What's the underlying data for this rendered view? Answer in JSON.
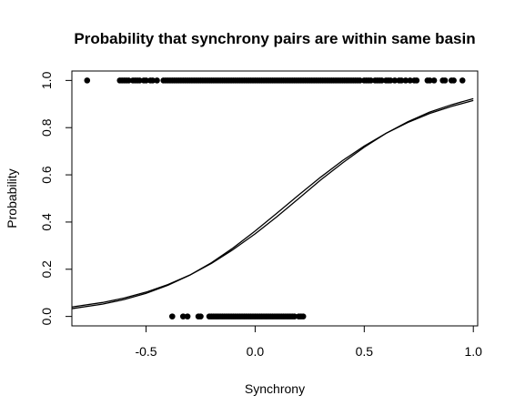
{
  "chart_data": {
    "type": "scatter",
    "title": "Probability that synchrony pairs are within same basin",
    "xlabel": "Synchrony",
    "ylabel": "Probability",
    "xlim": [
      -0.84,
      1.02
    ],
    "ylim": [
      -0.04,
      1.04
    ],
    "x_ticks": [
      "-0.5",
      "0.0",
      "0.5",
      "1.0"
    ],
    "y_ticks": [
      "0.0",
      "0.2",
      "0.4",
      "0.6",
      "0.8",
      "1.0"
    ],
    "grid": false,
    "legend": "none",
    "point_color": "#000000",
    "series": [
      {
        "type": "scatter",
        "y": 1,
        "x": [
          -0.77,
          -0.62,
          -0.61,
          -0.6,
          -0.59,
          -0.58,
          -0.56,
          -0.55,
          -0.54,
          -0.53,
          -0.51,
          -0.5,
          -0.48,
          -0.47,
          -0.45,
          -0.42,
          -0.41,
          -0.4,
          -0.39,
          -0.38,
          -0.37,
          -0.36,
          -0.35,
          -0.34,
          -0.33,
          -0.32,
          -0.31,
          -0.3,
          -0.29,
          -0.28,
          -0.27,
          -0.26,
          -0.25,
          -0.24,
          -0.23,
          -0.22,
          -0.21,
          -0.2,
          -0.19,
          -0.18,
          -0.17,
          -0.16,
          -0.15,
          -0.14,
          -0.13,
          -0.12,
          -0.11,
          -0.1,
          -0.09,
          -0.08,
          -0.07,
          -0.06,
          -0.05,
          -0.04,
          -0.03,
          -0.02,
          -0.01,
          0.0,
          0.01,
          0.02,
          0.03,
          0.04,
          0.05,
          0.06,
          0.07,
          0.08,
          0.09,
          0.1,
          0.11,
          0.12,
          0.13,
          0.14,
          0.15,
          0.16,
          0.17,
          0.18,
          0.19,
          0.2,
          0.21,
          0.22,
          0.23,
          0.24,
          0.25,
          0.26,
          0.27,
          0.28,
          0.29,
          0.3,
          0.31,
          0.32,
          0.33,
          0.34,
          0.35,
          0.36,
          0.37,
          0.38,
          0.39,
          0.4,
          0.41,
          0.42,
          0.43,
          0.44,
          0.45,
          0.46,
          0.47,
          0.48,
          0.5,
          0.51,
          0.52,
          0.53,
          0.55,
          0.56,
          0.57,
          0.58,
          0.6,
          0.61,
          0.62,
          0.64,
          0.66,
          0.67,
          0.69,
          0.71,
          0.73,
          0.74,
          0.79,
          0.8,
          0.82,
          0.86,
          0.87,
          0.9,
          0.91,
          0.95
        ]
      },
      {
        "type": "scatter",
        "y": 0,
        "x": [
          -0.38,
          -0.33,
          -0.31,
          -0.26,
          -0.25,
          -0.21,
          -0.2,
          -0.19,
          -0.18,
          -0.17,
          -0.16,
          -0.15,
          -0.14,
          -0.13,
          -0.12,
          -0.11,
          -0.1,
          -0.09,
          -0.08,
          -0.07,
          -0.06,
          -0.05,
          -0.04,
          -0.03,
          -0.02,
          -0.01,
          0.0,
          0.01,
          0.02,
          0.03,
          0.04,
          0.05,
          0.06,
          0.07,
          0.08,
          0.09,
          0.1,
          0.11,
          0.12,
          0.13,
          0.14,
          0.15,
          0.16,
          0.17,
          0.18,
          0.2,
          0.21,
          0.22
        ]
      },
      {
        "type": "line",
        "curve": "logistic",
        "x": [
          -0.84,
          -0.7,
          -0.6,
          -0.5,
          -0.4,
          -0.3,
          -0.2,
          -0.1,
          0.0,
          0.1,
          0.2,
          0.3,
          0.4,
          0.5,
          0.6,
          0.7,
          0.8,
          0.9,
          1.0
        ],
        "y": [
          0.04,
          0.059,
          0.078,
          0.103,
          0.135,
          0.175,
          0.225,
          0.284,
          0.35,
          0.423,
          0.5,
          0.578,
          0.65,
          0.717,
          0.776,
          0.825,
          0.866,
          0.897,
          0.923
        ]
      },
      {
        "type": "line",
        "curve": "logistic",
        "x": [
          -0.84,
          -0.7,
          -0.6,
          -0.5,
          -0.4,
          -0.3,
          -0.2,
          -0.1,
          0.0,
          0.1,
          0.2,
          0.3,
          0.4,
          0.5,
          0.6,
          0.7,
          0.8,
          0.9,
          1.0
        ],
        "y": [
          0.033,
          0.052,
          0.072,
          0.098,
          0.132,
          0.175,
          0.228,
          0.291,
          0.362,
          0.438,
          0.515,
          0.59,
          0.66,
          0.722,
          0.776,
          0.822,
          0.86,
          0.89,
          0.915
        ]
      }
    ]
  }
}
